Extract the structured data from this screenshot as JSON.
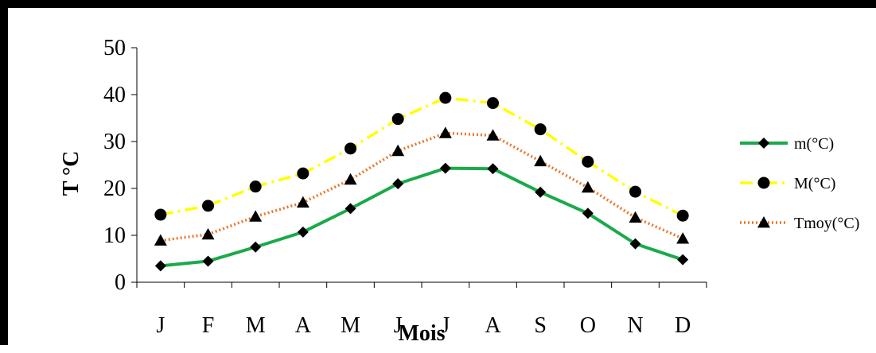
{
  "chart_data": {
    "type": "line",
    "categories": [
      "J",
      "F",
      "M",
      "A",
      "M",
      "J",
      "J",
      "A",
      "S",
      "O",
      "N",
      "D"
    ],
    "xlabel": "Mois",
    "ylabel": "T °C",
    "ylim": [
      0,
      50
    ],
    "yticks": [
      "0",
      "10",
      "20",
      "30",
      "40",
      "50"
    ],
    "grid": false,
    "legend_position": "right",
    "series": [
      {
        "name": "m(°C)",
        "values": [
          3.5,
          4.5,
          7.5,
          10.7,
          15.7,
          21,
          24.3,
          24.2,
          19.2,
          14.7,
          8.2,
          4.8
        ],
        "color": "#1aaa4a",
        "marker": "diamond",
        "line_style": "solid"
      },
      {
        "name": "M(°C)",
        "values": [
          14.4,
          16.3,
          20.4,
          23.2,
          28.5,
          34.8,
          39.3,
          38.2,
          32.6,
          25.7,
          19.3,
          14.2
        ],
        "color": "#ffff00",
        "marker": "circle",
        "line_style": "dashdot"
      },
      {
        "name": "Tmoy(°C)",
        "values": [
          8.9,
          10.2,
          14,
          17,
          21.9,
          28,
          31.8,
          31.3,
          25.8,
          20.2,
          13.8,
          9.3
        ],
        "color": "#e8782a",
        "marker": "triangle",
        "line_style": "dotted"
      }
    ]
  }
}
